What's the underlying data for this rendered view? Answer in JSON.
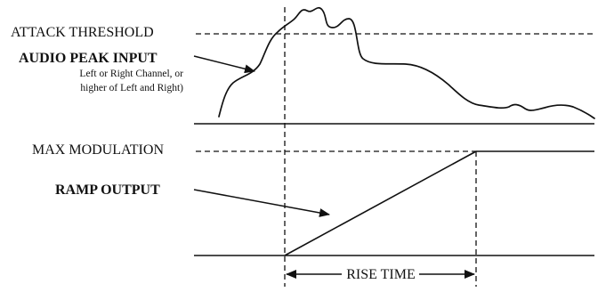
{
  "labels": {
    "attack_threshold": "ATTACK THRESHOLD",
    "audio_peak_input": "AUDIO PEAK INPUT",
    "audio_peak_input_note_line1": "Left or Right Channel, or",
    "audio_peak_input_note_line2": "higher of Left and Right)",
    "max_modulation": "MAX MODULATION",
    "ramp_output": "RAMP OUTPUT",
    "rise_time": "RISE TIME"
  }
}
